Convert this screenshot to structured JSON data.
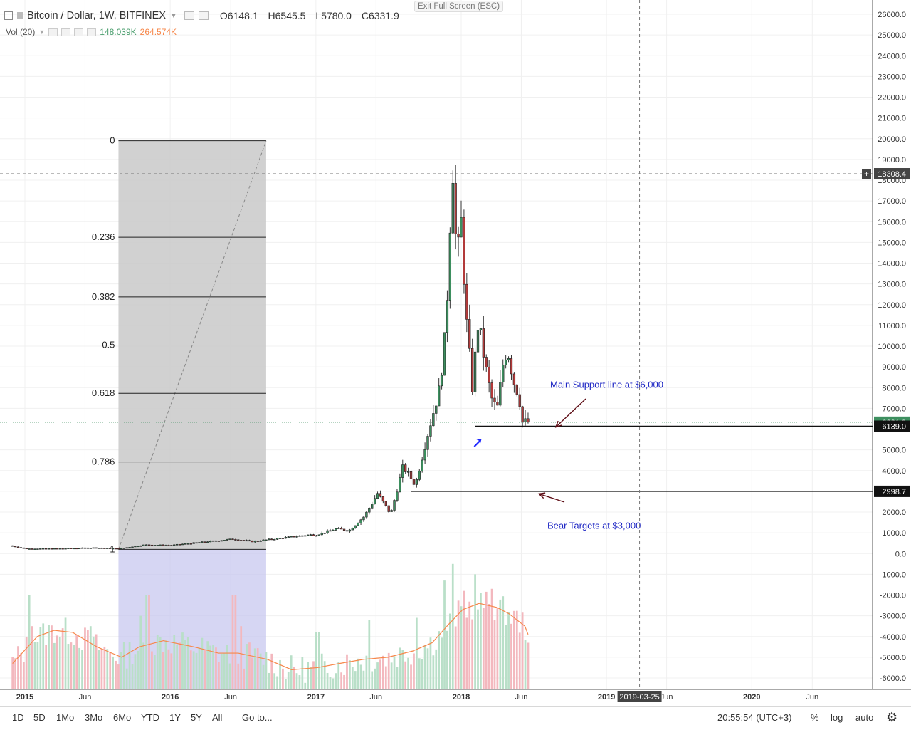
{
  "header": {
    "title": "Bitcoin / Dollar, 1W, BITFINEX",
    "open": "O6148.1",
    "high": "H6545.5",
    "low": "L5780.0",
    "close": "C6331.9",
    "exit_fullscreen": "Exit Full Screen (ESC)"
  },
  "volume_legend": {
    "label": "Vol (20)",
    "value1": "148.039K",
    "value2": "264.574K"
  },
  "bottom_bar": {
    "ranges": [
      "1D",
      "5D",
      "1Mo",
      "3Mo",
      "6Mo",
      "YTD",
      "1Y",
      "5Y",
      "All"
    ],
    "goto": "Go to...",
    "clock": "20:55:54 (UTC+3)",
    "percent": "%",
    "log": "log",
    "auto": "auto",
    "settings_icon": "gear-icon"
  },
  "colors": {
    "up": "#3d8f5f",
    "down": "#b33a3a",
    "vol_up": "#b9dfc8",
    "vol_down": "#f3b8be",
    "vol_ma": "#f7874a",
    "fib_box": "#c9c9c9",
    "fib_box_lower": "#c4c4ee",
    "annotation_text": "#1d26c4",
    "arrow": "#5e0d15",
    "blue_arrow": "#1d26ff"
  },
  "chart_data": {
    "type": "candlestick",
    "symbol": "Bitcoin / Dollar",
    "interval": "1W",
    "exchange": "BITFINEX",
    "y_ticks": [
      26000,
      25000,
      24000,
      23000,
      22000,
      21000,
      20000,
      19000,
      18000,
      17000,
      16000,
      15000,
      14000,
      13000,
      12000,
      11000,
      10000,
      9000,
      8000,
      7000,
      6000,
      5000,
      4000,
      3000,
      2000,
      1000,
      0,
      -1000,
      -2000,
      -3000,
      -4000,
      -5000,
      -6000
    ],
    "y_tick_labels": [
      "26000.0",
      "25000.0",
      "24000.0",
      "23000.0",
      "22000.0",
      "21000.0",
      "20000.0",
      "19000.0",
      "18000.0",
      "17000.0",
      "16000.0",
      "15000.0",
      "14000.0",
      "13000.0",
      "12000.0",
      "11000.0",
      "10000.0",
      "9000.0",
      "8000.0",
      "7000.0",
      "6000.0",
      "5000.0",
      "4000.0",
      "3000.0",
      "2000.0",
      "1000.0",
      "0.0",
      "-1000.0",
      "-2000.0",
      "-3000.0",
      "-4000.0",
      "-5000.0",
      "-6000.0"
    ],
    "ylim": [
      -6700,
      26400
    ],
    "x_ticks": [
      {
        "date": "2015-01-01",
        "label": "2015",
        "bold": true
      },
      {
        "date": "2015-06-01",
        "label": "Jun",
        "bold": false
      },
      {
        "date": "2016-01-01",
        "label": "2016",
        "bold": true
      },
      {
        "date": "2016-06-01",
        "label": "Jun",
        "bold": false
      },
      {
        "date": "2017-01-01",
        "label": "2017",
        "bold": true
      },
      {
        "date": "2017-06-01",
        "label": "Jun",
        "bold": false
      },
      {
        "date": "2018-01-01",
        "label": "2018",
        "bold": true
      },
      {
        "date": "2018-06-01",
        "label": "Jun",
        "bold": false
      },
      {
        "date": "2019-01-01",
        "label": "2019",
        "bold": true
      },
      {
        "date": "2019-06-01",
        "label": "Jun",
        "bold": false
      },
      {
        "date": "2020-01-01",
        "label": "2020",
        "bold": true
      },
      {
        "date": "2020-06-01",
        "label": "Jun",
        "bold": false
      }
    ],
    "crosshair": {
      "date": "2019-03-25",
      "label": "2019-03-25",
      "price": 18308.4,
      "price_label": "18308.4"
    },
    "last_price": {
      "value": 6331.9,
      "label": "6331.9"
    },
    "horizontal_levels": [
      {
        "value": 6139.0,
        "label": "6139.0",
        "start_date": "2018-02-05"
      },
      {
        "value": 2998.7,
        "label": "2998.7",
        "start_date": "2017-08-28"
      }
    ],
    "fibonacci": {
      "start_date": "2015-08-24",
      "end_date": "2016-08-29",
      "price_low": 200,
      "price_high": 19900,
      "levels": [
        {
          "ratio": 0,
          "label": "0"
        },
        {
          "ratio": 0.236,
          "label": "0.236"
        },
        {
          "ratio": 0.382,
          "label": "0.382"
        },
        {
          "ratio": 0.5,
          "label": "0.5"
        },
        {
          "ratio": 0.618,
          "label": "0.618"
        },
        {
          "ratio": 0.786,
          "label": "0.786"
        },
        {
          "ratio": 1,
          "label": "1"
        }
      ]
    },
    "annotations": [
      {
        "text": "Main Support line at $6,000",
        "date": "2018-07-20",
        "price": 8000,
        "arrow_to_date": "2018-09-10",
        "arrow_to_price": 6100
      },
      {
        "text": "Bear Targets at $3,000",
        "date": "2018-07-20",
        "price": 1200,
        "arrow_to_date": "2018-08-20",
        "arrow_to_price": 2950
      }
    ],
    "blue_marker": {
      "date": "2018-02-10",
      "price": 5400
    },
    "price_anchor_points": [
      {
        "date": "2014-12-01",
        "close": 380
      },
      {
        "date": "2015-01-12",
        "close": 230
      },
      {
        "date": "2015-04-01",
        "close": 240
      },
      {
        "date": "2015-07-01",
        "close": 280
      },
      {
        "date": "2015-09-01",
        "close": 235
      },
      {
        "date": "2015-11-05",
        "close": 420
      },
      {
        "date": "2016-01-10",
        "close": 400
      },
      {
        "date": "2016-06-15",
        "close": 700
      },
      {
        "date": "2016-08-01",
        "close": 580
      },
      {
        "date": "2016-12-20",
        "close": 900
      },
      {
        "date": "2017-01-10",
        "close": 900
      },
      {
        "date": "2017-03-01",
        "close": 1200
      },
      {
        "date": "2017-04-01",
        "close": 1100
      },
      {
        "date": "2017-05-10",
        "close": 1800
      },
      {
        "date": "2017-06-12",
        "close": 2900
      },
      {
        "date": "2017-07-15",
        "close": 1900
      },
      {
        "date": "2017-08-15",
        "close": 4200
      },
      {
        "date": "2017-09-15",
        "close": 3300
      },
      {
        "date": "2017-10-15",
        "close": 5700
      },
      {
        "date": "2017-11-15",
        "close": 8000
      },
      {
        "date": "2017-12-01",
        "close": 11000
      },
      {
        "date": "2017-12-17",
        "close": 18900
      },
      {
        "date": "2017-12-28",
        "close": 14000
      },
      {
        "date": "2018-01-08",
        "close": 16000
      },
      {
        "date": "2018-01-20",
        "close": 11500
      },
      {
        "date": "2018-02-05",
        "close": 8000
      },
      {
        "date": "2018-02-20",
        "close": 11200
      },
      {
        "date": "2018-03-10",
        "close": 9000
      },
      {
        "date": "2018-03-25",
        "close": 7500
      },
      {
        "date": "2018-04-08",
        "close": 6900
      },
      {
        "date": "2018-04-25",
        "close": 9400
      },
      {
        "date": "2018-05-05",
        "close": 9800
      },
      {
        "date": "2018-05-20",
        "close": 8300
      },
      {
        "date": "2018-06-02",
        "close": 7600
      },
      {
        "date": "2018-06-12",
        "close": 6200
      },
      {
        "date": "2018-06-18",
        "close": 6331.9
      }
    ],
    "volume_ma": [
      {
        "date": "2014-12-01",
        "value": -5300
      },
      {
        "date": "2015-02-01",
        "value": -4000
      },
      {
        "date": "2015-03-15",
        "value": -3700
      },
      {
        "date": "2015-05-01",
        "value": -3800
      },
      {
        "date": "2015-07-01",
        "value": -4500
      },
      {
        "date": "2015-09-01",
        "value": -5000
      },
      {
        "date": "2015-10-15",
        "value": -4500
      },
      {
        "date": "2015-12-15",
        "value": -4200
      },
      {
        "date": "2016-03-01",
        "value": -4500
      },
      {
        "date": "2016-05-01",
        "value": -4800
      },
      {
        "date": "2016-06-20",
        "value": -4800
      },
      {
        "date": "2016-09-01",
        "value": -5100
      },
      {
        "date": "2016-11-01",
        "value": -5600
      },
      {
        "date": "2017-01-05",
        "value": -5500
      },
      {
        "date": "2017-03-01",
        "value": -5300
      },
      {
        "date": "2017-05-01",
        "value": -5100
      },
      {
        "date": "2017-07-01",
        "value": -5000
      },
      {
        "date": "2017-09-01",
        "value": -4700
      },
      {
        "date": "2017-10-20",
        "value": -4300
      },
      {
        "date": "2017-12-01",
        "value": -3400
      },
      {
        "date": "2018-01-05",
        "value": -2700
      },
      {
        "date": "2018-02-15",
        "value": -2400
      },
      {
        "date": "2018-04-01",
        "value": -2600
      },
      {
        "date": "2018-05-01",
        "value": -2900
      },
      {
        "date": "2018-06-10",
        "value": -3500
      },
      {
        "date": "2018-06-18",
        "value": -3900
      }
    ],
    "volume_peaks": [
      {
        "date": "2015-01-10",
        "value": -2000
      },
      {
        "date": "2015-01-20",
        "value": -3500
      },
      {
        "date": "2015-06-15",
        "value": -3500
      },
      {
        "date": "2015-10-20",
        "value": -3000
      },
      {
        "date": "2015-11-05",
        "value": -2000
      },
      {
        "date": "2016-06-10",
        "value": -2000
      },
      {
        "date": "2016-06-25",
        "value": -3500
      },
      {
        "date": "2017-01-05",
        "value": -3800
      },
      {
        "date": "2017-05-15",
        "value": -3200
      },
      {
        "date": "2017-09-10",
        "value": -3100
      },
      {
        "date": "2017-11-20",
        "value": -1300
      },
      {
        "date": "2017-12-10",
        "value": -500
      },
      {
        "date": "2018-01-10",
        "value": -1800
      },
      {
        "date": "2018-02-05",
        "value": -1000
      },
      {
        "date": "2018-02-20",
        "value": -3200
      },
      {
        "date": "2018-03-20",
        "value": -1700
      },
      {
        "date": "2018-04-20",
        "value": -3500
      },
      {
        "date": "2018-06-15",
        "value": -4300
      }
    ]
  }
}
